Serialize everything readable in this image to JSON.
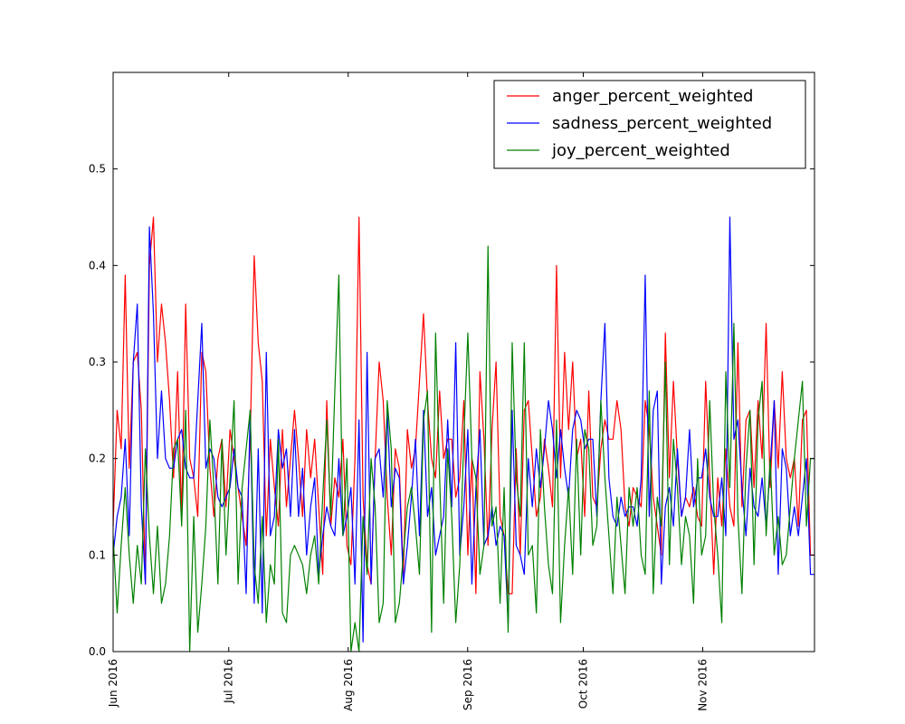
{
  "chart_data": {
    "type": "line",
    "title": "",
    "xlabel": "",
    "ylabel": "",
    "x_range_days": [
      0,
      182
    ],
    "ylim": [
      0.0,
      0.6
    ],
    "y_ticks": [
      0.0,
      0.1,
      0.2,
      0.3,
      0.4,
      0.5
    ],
    "y_tick_labels": [
      "0.0",
      "0.1",
      "0.2",
      "0.3",
      "0.4",
      "0.5"
    ],
    "x_ticks_days": [
      0,
      30,
      61,
      92,
      122,
      153
    ],
    "x_tick_labels": [
      "Jun 2016",
      "Jul 2016",
      "Aug 2016",
      "Sep 2016",
      "Oct 2016",
      "Nov 2016"
    ],
    "x_start_date": "2016-06-01",
    "legend_position": "top-right",
    "series": [
      {
        "name": "anger_percent_weighted",
        "color": "#ff0000",
        "values": [
          0.13,
          0.25,
          0.21,
          0.39,
          0.19,
          0.3,
          0.31,
          0.25,
          0.07,
          0.4,
          0.45,
          0.3,
          0.36,
          0.32,
          0.26,
          0.18,
          0.29,
          0.14,
          0.36,
          0.2,
          0.18,
          0.14,
          0.31,
          0.29,
          0.19,
          0.14,
          0.2,
          0.22,
          0.15,
          0.23,
          0.2,
          0.17,
          0.14,
          0.11,
          0.22,
          0.41,
          0.32,
          0.28,
          0.12,
          0.22,
          0.17,
          0.13,
          0.23,
          0.15,
          0.2,
          0.25,
          0.2,
          0.14,
          0.23,
          0.18,
          0.22,
          0.15,
          0.08,
          0.26,
          0.13,
          0.18,
          0.16,
          0.22,
          0.11,
          0.09,
          0.2,
          0.45,
          0.16,
          0.09,
          0.07,
          0.2,
          0.3,
          0.26,
          0.16,
          0.1,
          0.21,
          0.19,
          0.08,
          0.23,
          0.19,
          0.21,
          0.28,
          0.35,
          0.26,
          0.2,
          0.18,
          0.27,
          0.2,
          0.22,
          0.22,
          0.16,
          0.18,
          0.26,
          0.1,
          0.2,
          0.06,
          0.29,
          0.22,
          0.11,
          0.23,
          0.3,
          0.14,
          0.12,
          0.06,
          0.06,
          0.21,
          0.1,
          0.25,
          0.26,
          0.2,
          0.14,
          0.16,
          0.22,
          0.19,
          0.15,
          0.4,
          0.18,
          0.31,
          0.23,
          0.3,
          0.2,
          0.22,
          0.14,
          0.27,
          0.16,
          0.15,
          0.21,
          0.24,
          0.22,
          0.22,
          0.26,
          0.23,
          0.15,
          0.13,
          0.17,
          0.16,
          0.15,
          0.26,
          0.23,
          0.16,
          0.13,
          0.1,
          0.33,
          0.18,
          0.28,
          0.2,
          0.14,
          0.16,
          0.15,
          0.17,
          0.14,
          0.13,
          0.28,
          0.18,
          0.08,
          0.18,
          0.13,
          0.21,
          0.15,
          0.13,
          0.32,
          0.15,
          0.24,
          0.25,
          0.17,
          0.26,
          0.2,
          0.34,
          0.17,
          0.26,
          0.19,
          0.29,
          0.2,
          0.18,
          0.2,
          0.13,
          0.24,
          0.25,
          0.1
        ],
        "last_value": 0.1
      },
      {
        "name": "sadness_percent_weighted",
        "color": "#0000ff",
        "values": [
          0.1,
          0.14,
          0.16,
          0.22,
          0.12,
          0.3,
          0.36,
          0.15,
          0.07,
          0.44,
          0.35,
          0.2,
          0.27,
          0.2,
          0.19,
          0.19,
          0.22,
          0.23,
          0.19,
          0.18,
          0.18,
          0.26,
          0.34,
          0.19,
          0.21,
          0.2,
          0.16,
          0.15,
          0.16,
          0.17,
          0.21,
          0.17,
          0.16,
          0.06,
          0.25,
          0.05,
          0.21,
          0.04,
          0.31,
          0.12,
          0.14,
          0.23,
          0.19,
          0.21,
          0.14,
          0.23,
          0.14,
          0.19,
          0.1,
          0.15,
          0.18,
          0.08,
          0.12,
          0.15,
          0.13,
          0.12,
          0.2,
          0.12,
          0.14,
          0.17,
          0.07,
          0.24,
          0.01,
          0.31,
          0.07,
          0.2,
          0.21,
          0.16,
          0.25,
          0.15,
          0.19,
          0.18,
          0.07,
          0.11,
          0.16,
          0.22,
          0.12,
          0.25,
          0.14,
          0.17,
          0.1,
          0.12,
          0.14,
          0.24,
          0.15,
          0.32,
          0.1,
          0.15,
          0.23,
          0.07,
          0.17,
          0.23,
          0.11,
          0.12,
          0.15,
          0.11,
          0.13,
          0.12,
          0.03,
          0.25,
          0.11,
          0.1,
          0.08,
          0.2,
          0.15,
          0.21,
          0.17,
          0.21,
          0.26,
          0.23,
          0.18,
          0.23,
          0.19,
          0.16,
          0.23,
          0.25,
          0.24,
          0.21,
          0.22,
          0.22,
          0.14,
          0.26,
          0.34,
          0.18,
          0.14,
          0.13,
          0.16,
          0.14,
          0.15,
          0.15,
          0.13,
          0.18,
          0.39,
          0.14,
          0.25,
          0.27,
          0.07,
          0.15,
          0.17,
          0.13,
          0.21,
          0.14,
          0.16,
          0.23,
          0.15,
          0.18,
          0.18,
          0.21,
          0.16,
          0.14,
          0.14,
          0.18,
          0.12,
          0.45,
          0.22,
          0.24,
          0.17,
          0.12,
          0.19,
          0.15,
          0.14,
          0.18,
          0.13,
          0.19,
          0.26,
          0.08,
          0.21,
          0.19,
          0.12,
          0.15,
          0.12,
          0.16,
          0.2,
          0.08
        ],
        "last_value": 0.08
      },
      {
        "name": "joy_percent_weighted",
        "color": "#008000",
        "values": [
          0.12,
          0.04,
          0.11,
          0.17,
          0.1,
          0.05,
          0.11,
          0.07,
          0.21,
          0.12,
          0.06,
          0.13,
          0.05,
          0.07,
          0.12,
          0.21,
          0.22,
          0.13,
          0.25,
          0.0,
          0.14,
          0.02,
          0.07,
          0.13,
          0.24,
          0.17,
          0.07,
          0.22,
          0.1,
          0.18,
          0.26,
          0.07,
          0.17,
          0.21,
          0.25,
          0.09,
          0.05,
          0.14,
          0.03,
          0.09,
          0.07,
          0.22,
          0.04,
          0.03,
          0.1,
          0.11,
          0.1,
          0.09,
          0.06,
          0.1,
          0.12,
          0.07,
          0.16,
          0.24,
          0.14,
          0.27,
          0.39,
          0.12,
          0.2,
          0.0,
          0.03,
          0.0,
          0.14,
          0.08,
          0.2,
          0.15,
          0.03,
          0.05,
          0.26,
          0.21,
          0.03,
          0.05,
          0.1,
          0.15,
          0.17,
          0.13,
          0.08,
          0.24,
          0.27,
          0.02,
          0.33,
          0.18,
          0.05,
          0.21,
          0.14,
          0.03,
          0.09,
          0.22,
          0.33,
          0.2,
          0.18,
          0.08,
          0.11,
          0.42,
          0.13,
          0.15,
          0.05,
          0.17,
          0.02,
          0.32,
          0.18,
          0.14,
          0.32,
          0.1,
          0.11,
          0.04,
          0.23,
          0.15,
          0.09,
          0.06,
          0.24,
          0.03,
          0.11,
          0.17,
          0.08,
          0.22,
          0.1,
          0.23,
          0.21,
          0.11,
          0.13,
          0.26,
          0.18,
          0.12,
          0.06,
          0.16,
          0.11,
          0.06,
          0.17,
          0.13,
          0.17,
          0.1,
          0.08,
          0.27,
          0.06,
          0.16,
          0.13,
          0.3,
          0.09,
          0.22,
          0.17,
          0.09,
          0.14,
          0.12,
          0.05,
          0.2,
          0.1,
          0.12,
          0.26,
          0.15,
          0.1,
          0.03,
          0.29,
          0.17,
          0.34,
          0.14,
          0.06,
          0.19,
          0.25,
          0.09,
          0.24,
          0.28,
          0.12,
          0.2,
          0.1,
          0.14,
          0.09,
          0.1,
          0.15,
          0.2,
          0.24,
          0.28,
          0.13,
          0.2
        ],
        "last_value": 0.2
      }
    ]
  }
}
